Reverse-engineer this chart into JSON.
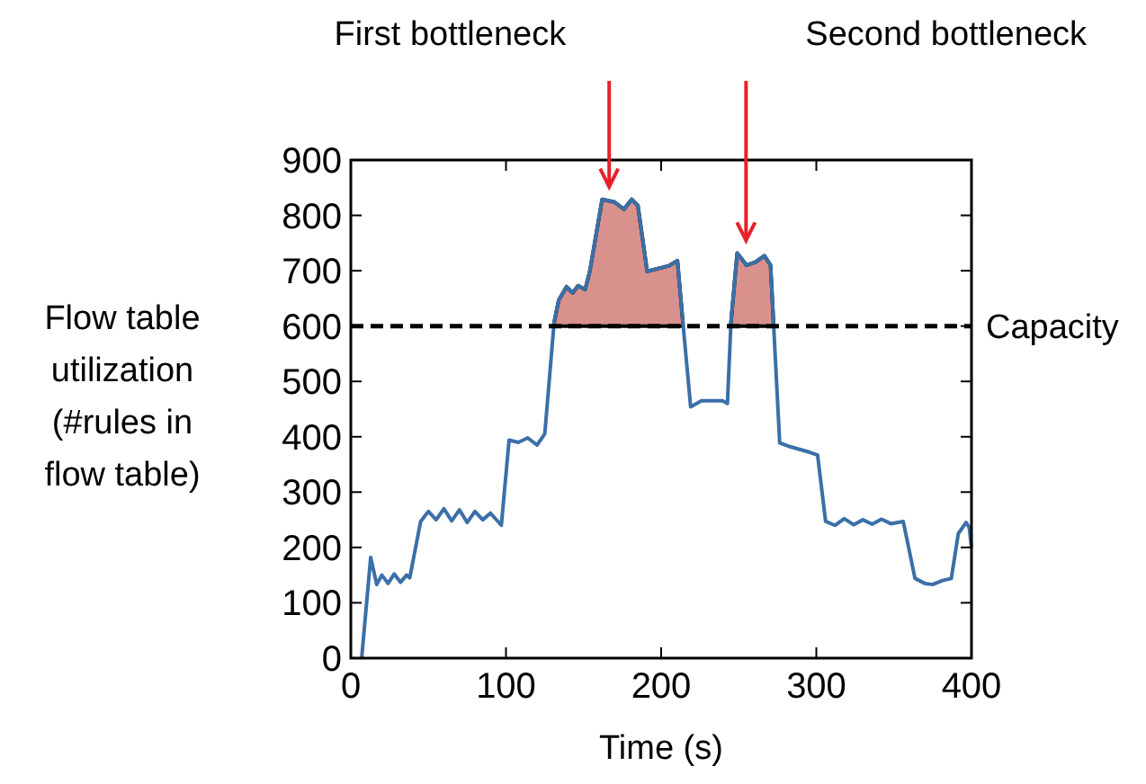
{
  "chart_data": {
    "type": "line",
    "xlabel": "Time (s)",
    "ylabel": "Flow table utilization (#rules in flow table)",
    "xlim": [
      0,
      400
    ],
    "ylim": [
      0,
      900
    ],
    "xticks": [
      0,
      100,
      200,
      300,
      400
    ],
    "yticks": [
      0,
      100,
      200,
      300,
      400,
      500,
      600,
      700,
      800,
      900
    ],
    "grid": false,
    "series": [
      {
        "color": "#3b6fa8",
        "x": [
          7,
          12.8,
          16.7,
          20,
          24,
          28,
          32,
          36,
          38,
          45,
          50,
          55,
          60,
          65,
          70,
          75,
          80,
          85,
          90,
          97,
          102,
          108,
          114,
          120,
          125,
          131,
          134,
          139,
          143,
          146.5,
          151,
          154,
          162,
          170,
          176,
          181,
          185,
          191,
          205,
          210.5,
          214,
          219,
          226,
          239.5,
          242.7,
          245,
          249,
          255,
          261,
          266.6,
          270.5,
          272.4,
          276.4,
          282,
          295.7,
          300.8,
          306,
          312,
          318,
          324,
          330,
          336,
          342,
          348,
          356,
          363.6,
          370,
          375,
          381,
          387,
          391.5,
          396.5,
          398.5,
          400
        ],
        "values": [
          0,
          182,
          133,
          150,
          135,
          152,
          137,
          150,
          145,
          247,
          265,
          250,
          270,
          248,
          268,
          245,
          265,
          250,
          262,
          240,
          394,
          390,
          398,
          385,
          405,
          606,
          647,
          671,
          660,
          673,
          666,
          699,
          829,
          824,
          811,
          829,
          818,
          699,
          709,
          718,
          607,
          454,
          465,
          465,
          460,
          607,
          732,
          710,
          716,
          727,
          710,
          607,
          389,
          383,
          372,
          367,
          247,
          240,
          252,
          241,
          250,
          242,
          251,
          243,
          247,
          144,
          135,
          133,
          140,
          144,
          225,
          245,
          237,
          200
        ]
      },
      {
        "type": "area",
        "color": "#d9918d",
        "x": [
          131,
          134,
          139,
          143,
          146.5,
          151,
          154,
          162,
          170,
          176,
          181,
          185,
          191,
          205,
          210.5,
          214,
          230,
          245,
          249,
          255,
          261,
          266.6,
          270.5,
          272.4
        ],
        "values": [
          606,
          647,
          671,
          660,
          673,
          666,
          699,
          829,
          824,
          811,
          829,
          818,
          699,
          709,
          718,
          607,
          null,
          607,
          732,
          710,
          716,
          727,
          710,
          607
        ]
      }
    ],
    "ref_lines": [
      {
        "axis": "y",
        "value": 600,
        "label": "Capacity",
        "color": "#000000",
        "line_style": "dashed"
      }
    ],
    "annotations": [
      "First bottleneck",
      "Second bottleneck"
    ]
  }
}
